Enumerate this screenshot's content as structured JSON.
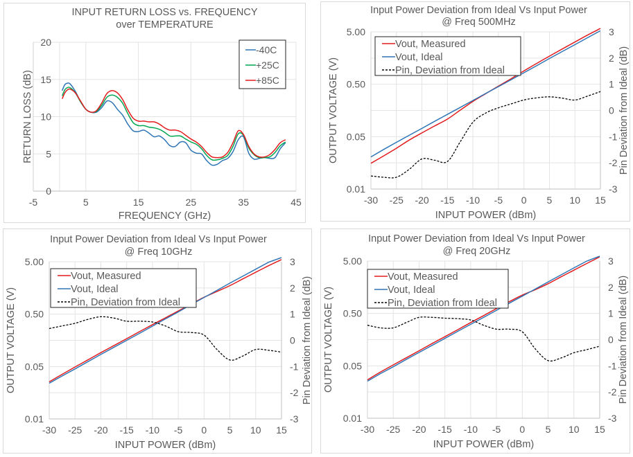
{
  "chart_data": [
    {
      "type": "line",
      "title": "INPUT RETURN LOSS vs. FREQUENCY",
      "subtitle": "over TEMPERATURE",
      "xlabel": "FREQUENCY (GHz)",
      "ylabel": "RETURN LOSS (dB)",
      "xlim": [
        -5,
        45
      ],
      "ylim": [
        0,
        20
      ],
      "xticks": [
        "-5",
        "5",
        "15",
        "25",
        "35",
        "45"
      ],
      "xtick_values": [
        -5,
        5,
        15,
        25,
        35,
        45
      ],
      "yticks": [
        "0",
        "5",
        "10",
        "15",
        "20"
      ],
      "ytick_values": [
        0,
        5,
        10,
        15,
        20
      ],
      "x_gridlines": [
        0,
        5,
        15,
        25,
        35
      ],
      "grid": true,
      "legend_position": "top-right",
      "x": [
        0.5,
        1,
        1.5,
        2,
        3,
        4,
        5,
        6,
        7,
        8,
        9,
        10,
        11,
        12,
        13,
        14,
        15,
        16,
        17,
        18,
        19,
        20,
        21,
        22,
        23,
        24,
        25,
        26,
        27,
        28,
        29,
        30,
        31,
        32,
        33,
        34,
        35,
        36,
        37,
        38,
        39,
        40,
        41,
        42,
        43
      ],
      "series": [
        {
          "name": "-40C",
          "color": "#2e75b6",
          "values": [
            13.5,
            14.3,
            14.5,
            14.4,
            13.4,
            12.0,
            11.0,
            10.6,
            10.6,
            11.2,
            12.1,
            11.9,
            11.0,
            10.2,
            9.0,
            8.1,
            8.0,
            8.2,
            7.8,
            7.3,
            7.4,
            6.9,
            6.1,
            6.0,
            6.6,
            6.5,
            5.5,
            5.1,
            5.0,
            4.1,
            3.5,
            3.6,
            4.1,
            4.4,
            5.3,
            6.9,
            7.3,
            5.1,
            4.3,
            4.4,
            4.5,
            4.4,
            4.5,
            5.7,
            6.5
          ]
        },
        {
          "name": "+25C",
          "color": "#00a651",
          "values": [
            12.8,
            13.6,
            13.9,
            13.9,
            13.2,
            12.0,
            11.0,
            10.6,
            10.7,
            11.5,
            12.6,
            12.9,
            12.6,
            11.8,
            10.4,
            9.2,
            8.8,
            8.8,
            8.6,
            8.5,
            8.3,
            7.9,
            7.4,
            7.4,
            7.4,
            7.0,
            6.6,
            6.3,
            5.7,
            4.8,
            4.2,
            4.2,
            4.4,
            4.8,
            6.0,
            7.7,
            7.5,
            5.8,
            4.9,
            4.5,
            4.5,
            4.6,
            5.2,
            6.1,
            6.6
          ]
        },
        {
          "name": "+85C",
          "color": "#e31a1c",
          "values": [
            12.4,
            13.2,
            13.6,
            13.7,
            13.2,
            12.1,
            11.0,
            10.6,
            10.8,
            11.8,
            13.1,
            13.5,
            13.2,
            12.3,
            10.9,
            9.8,
            9.4,
            9.4,
            9.3,
            9.3,
            9.0,
            8.5,
            8.2,
            8.2,
            8.0,
            7.5,
            7.0,
            6.6,
            6.0,
            5.2,
            4.6,
            4.5,
            4.6,
            5.2,
            6.5,
            8.1,
            7.6,
            6.0,
            5.0,
            4.6,
            4.6,
            4.9,
            5.6,
            6.5,
            6.9
          ]
        }
      ]
    },
    {
      "type": "line",
      "title": "Input Power Deviation from Ideal Vs Input Power",
      "subtitle": "@ Freq 500MHz",
      "xlabel": "INPUT POWER (dBm)",
      "ylabel": "OUTPUT VOLTAGE (V)",
      "y2label": "Pin Deviation from Ideal (dB)",
      "xlim": [
        -30,
        15
      ],
      "yscale": "log",
      "ylim": [
        0.005,
        5
      ],
      "xticks": [
        "-30",
        "-25",
        "-20",
        "-15",
        "-10",
        "-5",
        "0",
        "5",
        "10",
        "15"
      ],
      "xtick_values": [
        -30,
        -25,
        -20,
        -15,
        -10,
        -5,
        0,
        5,
        10,
        15
      ],
      "yticks": [
        "0.01",
        "0.05",
        "0.50",
        "5.00"
      ],
      "y2lim": [
        -3,
        3
      ],
      "y2ticks": [
        "-3",
        "-2",
        "-1",
        "0",
        "1",
        "2",
        "3"
      ],
      "y2tick_values": [
        -3,
        -2,
        -1,
        0,
        1,
        2,
        3
      ],
      "grid": true,
      "legend_position": "top-left",
      "x": [
        -30,
        -27.5,
        -25,
        -22.5,
        -20,
        -17.5,
        -15,
        -12.5,
        -10,
        -7.5,
        -5,
        -2.5,
        0,
        2.5,
        5,
        7.5,
        10,
        12.5,
        15
      ],
      "series": [
        {
          "name": "Vout, Measured",
          "color": "#e31a1c",
          "axis": "left",
          "values": [
            0.0155,
            0.0215,
            0.03,
            0.043,
            0.059,
            0.08,
            0.108,
            0.16,
            0.235,
            0.33,
            0.46,
            0.64,
            0.9,
            1.25,
            1.72,
            2.35,
            3.2,
            4.35,
            5.8
          ]
        },
        {
          "name": "Vout, Ideal",
          "color": "#2e75b6",
          "axis": "left",
          "values": [
            0.0205,
            0.0285,
            0.039,
            0.053,
            0.072,
            0.098,
            0.133,
            0.18,
            0.245,
            0.333,
            0.45,
            0.61,
            0.83,
            1.13,
            1.55,
            2.1,
            2.85,
            3.87,
            5.25
          ]
        },
        {
          "name": "Pin, Deviation from Ideal",
          "color": "#000000",
          "dash": true,
          "axis": "right",
          "values": [
            -2.5,
            -2.55,
            -2.55,
            -2.25,
            -1.85,
            -1.9,
            -1.95,
            -1.2,
            -0.45,
            -0.1,
            0.1,
            0.25,
            0.4,
            0.48,
            0.52,
            0.47,
            0.4,
            0.55,
            0.72
          ]
        }
      ]
    },
    {
      "type": "line",
      "title": "Input Power Deviation from Ideal Vs Input Power",
      "subtitle": "@ Freq 10GHz",
      "xlabel": "INPUT POWER (dBm)",
      "ylabel": "OUTPUT VOLTAGE (V)",
      "y2label": "Pin Deviation from Ideal (dB)",
      "xlim": [
        -30,
        15
      ],
      "yscale": "log",
      "ylim": [
        0.005,
        5
      ],
      "xticks": [
        "-30",
        "-25",
        "-20",
        "-15",
        "-10",
        "-5",
        "0",
        "5",
        "10",
        "15"
      ],
      "xtick_values": [
        -30,
        -25,
        -20,
        -15,
        -10,
        -5,
        0,
        5,
        10,
        15
      ],
      "yticks": [
        "0.01",
        "0.05",
        "0.50",
        "5.00"
      ],
      "y2lim": [
        -3,
        3
      ],
      "y2ticks": [
        "-3",
        "-2",
        "-1",
        "0",
        "1",
        "2",
        "3"
      ],
      "y2tick_values": [
        -3,
        -2,
        -1,
        0,
        1,
        2,
        3
      ],
      "grid": true,
      "legend_position": "top-left",
      "x": [
        -30,
        -27.5,
        -25,
        -22.5,
        -20,
        -17.5,
        -15,
        -12.5,
        -10,
        -7.5,
        -5,
        -2.5,
        0,
        2.5,
        5,
        7.5,
        10,
        12.5,
        15
      ],
      "series": [
        {
          "name": "Vout, Measured",
          "color": "#e31a1c",
          "axis": "left",
          "values": [
            0.0255,
            0.0355,
            0.049,
            0.067,
            0.092,
            0.125,
            0.17,
            0.232,
            0.315,
            0.425,
            0.575,
            0.78,
            1.05,
            1.35,
            1.75,
            2.35,
            3.15,
            4.2,
            5.5
          ]
        },
        {
          "name": "Vout, Ideal",
          "color": "#2e75b6",
          "axis": "left",
          "values": [
            0.024,
            0.033,
            0.045,
            0.062,
            0.085,
            0.116,
            0.158,
            0.215,
            0.295,
            0.405,
            0.55,
            0.76,
            1.04,
            1.42,
            1.95,
            2.65,
            3.6,
            4.9,
            6.0
          ]
        },
        {
          "name": "Pin, Deviation from Ideal",
          "color": "#000000",
          "dash": true,
          "axis": "right",
          "values": [
            0.45,
            0.55,
            0.65,
            0.8,
            0.9,
            0.85,
            0.73,
            0.73,
            0.7,
            0.55,
            0.33,
            0.3,
            0.2,
            -0.35,
            -0.75,
            -0.6,
            -0.35,
            -0.38,
            -0.45
          ]
        }
      ]
    },
    {
      "type": "line",
      "title": "Input Power Deviation from Ideal Vs Input Power",
      "subtitle": "@ Freq 20GHz",
      "xlabel": "INPUT POWER (dBm)",
      "ylabel": "OUTPUT VOLTAGE (V)",
      "y2label": "Pin Deviation from Ideal (dB)",
      "xlim": [
        -30,
        15
      ],
      "yscale": "log",
      "ylim": [
        0.005,
        5
      ],
      "xticks": [
        "-30",
        "-25",
        "-20",
        "-15",
        "-10",
        "-5",
        "0",
        "5",
        "10",
        "15"
      ],
      "xtick_values": [
        -30,
        -25,
        -20,
        -15,
        -10,
        -5,
        0,
        5,
        10,
        15
      ],
      "yticks": [
        "0.01",
        "0.05",
        "0.50",
        "5.00"
      ],
      "y2lim": [
        -3,
        3
      ],
      "y2ticks": [
        "-3",
        "-2",
        "-1",
        "0",
        "1",
        "2",
        "3"
      ],
      "y2tick_values": [
        -3,
        -2,
        -1,
        0,
        1,
        2,
        3
      ],
      "grid": true,
      "legend_position": "top-left",
      "x": [
        -30,
        -27.5,
        -25,
        -22.5,
        -20,
        -17.5,
        -15,
        -12.5,
        -10,
        -7.5,
        -5,
        -2.5,
        0,
        2.5,
        5,
        7.5,
        10,
        12.5,
        15
      ],
      "series": [
        {
          "name": "Vout, Measured",
          "color": "#e31a1c",
          "axis": "left",
          "values": [
            0.027,
            0.038,
            0.052,
            0.071,
            0.097,
            0.133,
            0.18,
            0.245,
            0.335,
            0.455,
            0.62,
            0.84,
            1.12,
            1.42,
            1.85,
            2.5,
            3.35,
            4.5,
            6.0
          ]
        },
        {
          "name": "Vout, Ideal",
          "color": "#2e75b6",
          "axis": "left",
          "values": [
            0.0255,
            0.0355,
            0.048,
            0.066,
            0.09,
            0.123,
            0.167,
            0.228,
            0.31,
            0.42,
            0.575,
            0.785,
            1.07,
            1.46,
            2.0,
            2.72,
            3.7,
            5.0,
            6.2
          ]
        },
        {
          "name": "Pin, Deviation from Ideal",
          "color": "#000000",
          "dash": true,
          "axis": "right",
          "values": [
            0.55,
            0.45,
            0.45,
            0.65,
            0.85,
            0.85,
            0.82,
            0.8,
            0.75,
            0.55,
            0.4,
            0.4,
            0.3,
            -0.35,
            -0.8,
            -0.7,
            -0.5,
            -0.38,
            -0.25
          ]
        }
      ]
    }
  ]
}
